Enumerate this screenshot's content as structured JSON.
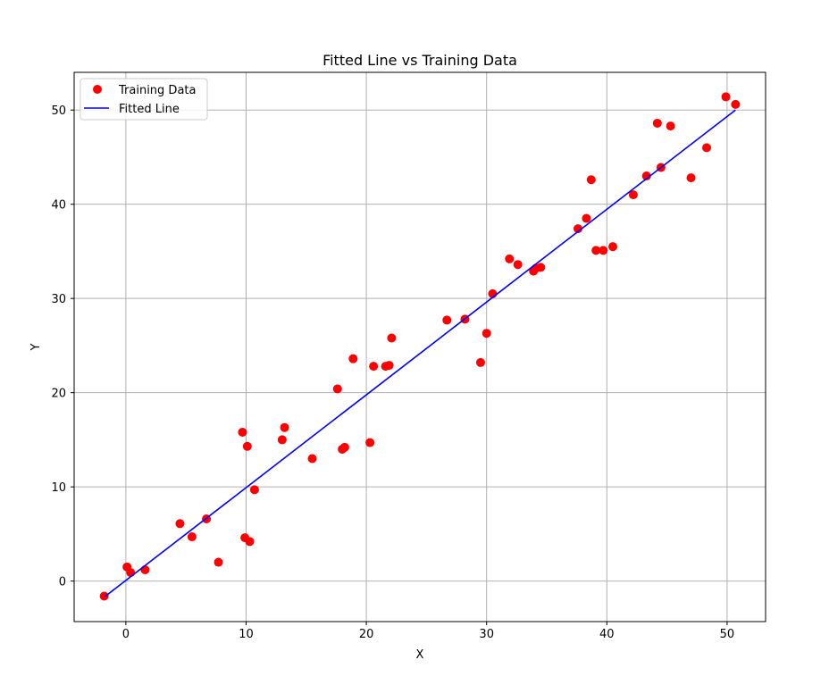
{
  "chart_data": {
    "type": "scatter",
    "title": "Fitted Line vs Training Data",
    "xlabel": "X",
    "ylabel": "Y",
    "xlim": [
      -4.3,
      53.2
    ],
    "ylim": [
      -4.3,
      54.0
    ],
    "xticks": [
      0,
      10,
      20,
      30,
      40,
      50
    ],
    "yticks": [
      0,
      10,
      20,
      30,
      40,
      50
    ],
    "grid": true,
    "legend": "top-left",
    "series": [
      {
        "name": "Training Data",
        "kind": "scatter",
        "color": "#ff0000",
        "points": [
          [
            -1.8,
            -1.6
          ],
          [
            0.1,
            1.5
          ],
          [
            0.4,
            0.9
          ],
          [
            1.6,
            1.2
          ],
          [
            4.5,
            6.1
          ],
          [
            5.5,
            4.7
          ],
          [
            6.7,
            6.6
          ],
          [
            7.7,
            2.0
          ],
          [
            9.7,
            15.8
          ],
          [
            9.9,
            4.6
          ],
          [
            10.1,
            14.3
          ],
          [
            10.3,
            4.2
          ],
          [
            10.7,
            9.7
          ],
          [
            13.0,
            15.0
          ],
          [
            13.2,
            16.3
          ],
          [
            15.5,
            13.0
          ],
          [
            17.6,
            20.4
          ],
          [
            18.0,
            14.0
          ],
          [
            18.2,
            14.2
          ],
          [
            18.9,
            23.6
          ],
          [
            20.3,
            14.7
          ],
          [
            20.6,
            22.8
          ],
          [
            21.6,
            22.8
          ],
          [
            21.9,
            22.9
          ],
          [
            22.1,
            25.8
          ],
          [
            26.7,
            27.7
          ],
          [
            28.2,
            27.8
          ],
          [
            29.5,
            23.2
          ],
          [
            30.0,
            26.3
          ],
          [
            30.5,
            30.5
          ],
          [
            31.9,
            34.2
          ],
          [
            32.6,
            33.6
          ],
          [
            33.9,
            32.9
          ],
          [
            34.1,
            33.2
          ],
          [
            34.5,
            33.3
          ],
          [
            37.6,
            37.4
          ],
          [
            38.3,
            38.5
          ],
          [
            38.7,
            42.6
          ],
          [
            39.1,
            35.1
          ],
          [
            39.7,
            35.1
          ],
          [
            40.5,
            35.5
          ],
          [
            42.2,
            41.0
          ],
          [
            43.3,
            43.0
          ],
          [
            44.2,
            48.6
          ],
          [
            44.5,
            43.9
          ],
          [
            45.3,
            48.3
          ],
          [
            47.0,
            42.8
          ],
          [
            48.3,
            46.0
          ],
          [
            49.9,
            51.4
          ],
          [
            50.7,
            50.6
          ]
        ]
      },
      {
        "name": "Fitted Line",
        "kind": "line",
        "color": "#0000ff",
        "points": [
          [
            -1.8,
            -1.7
          ],
          [
            50.7,
            50.0
          ]
        ]
      }
    ]
  }
}
